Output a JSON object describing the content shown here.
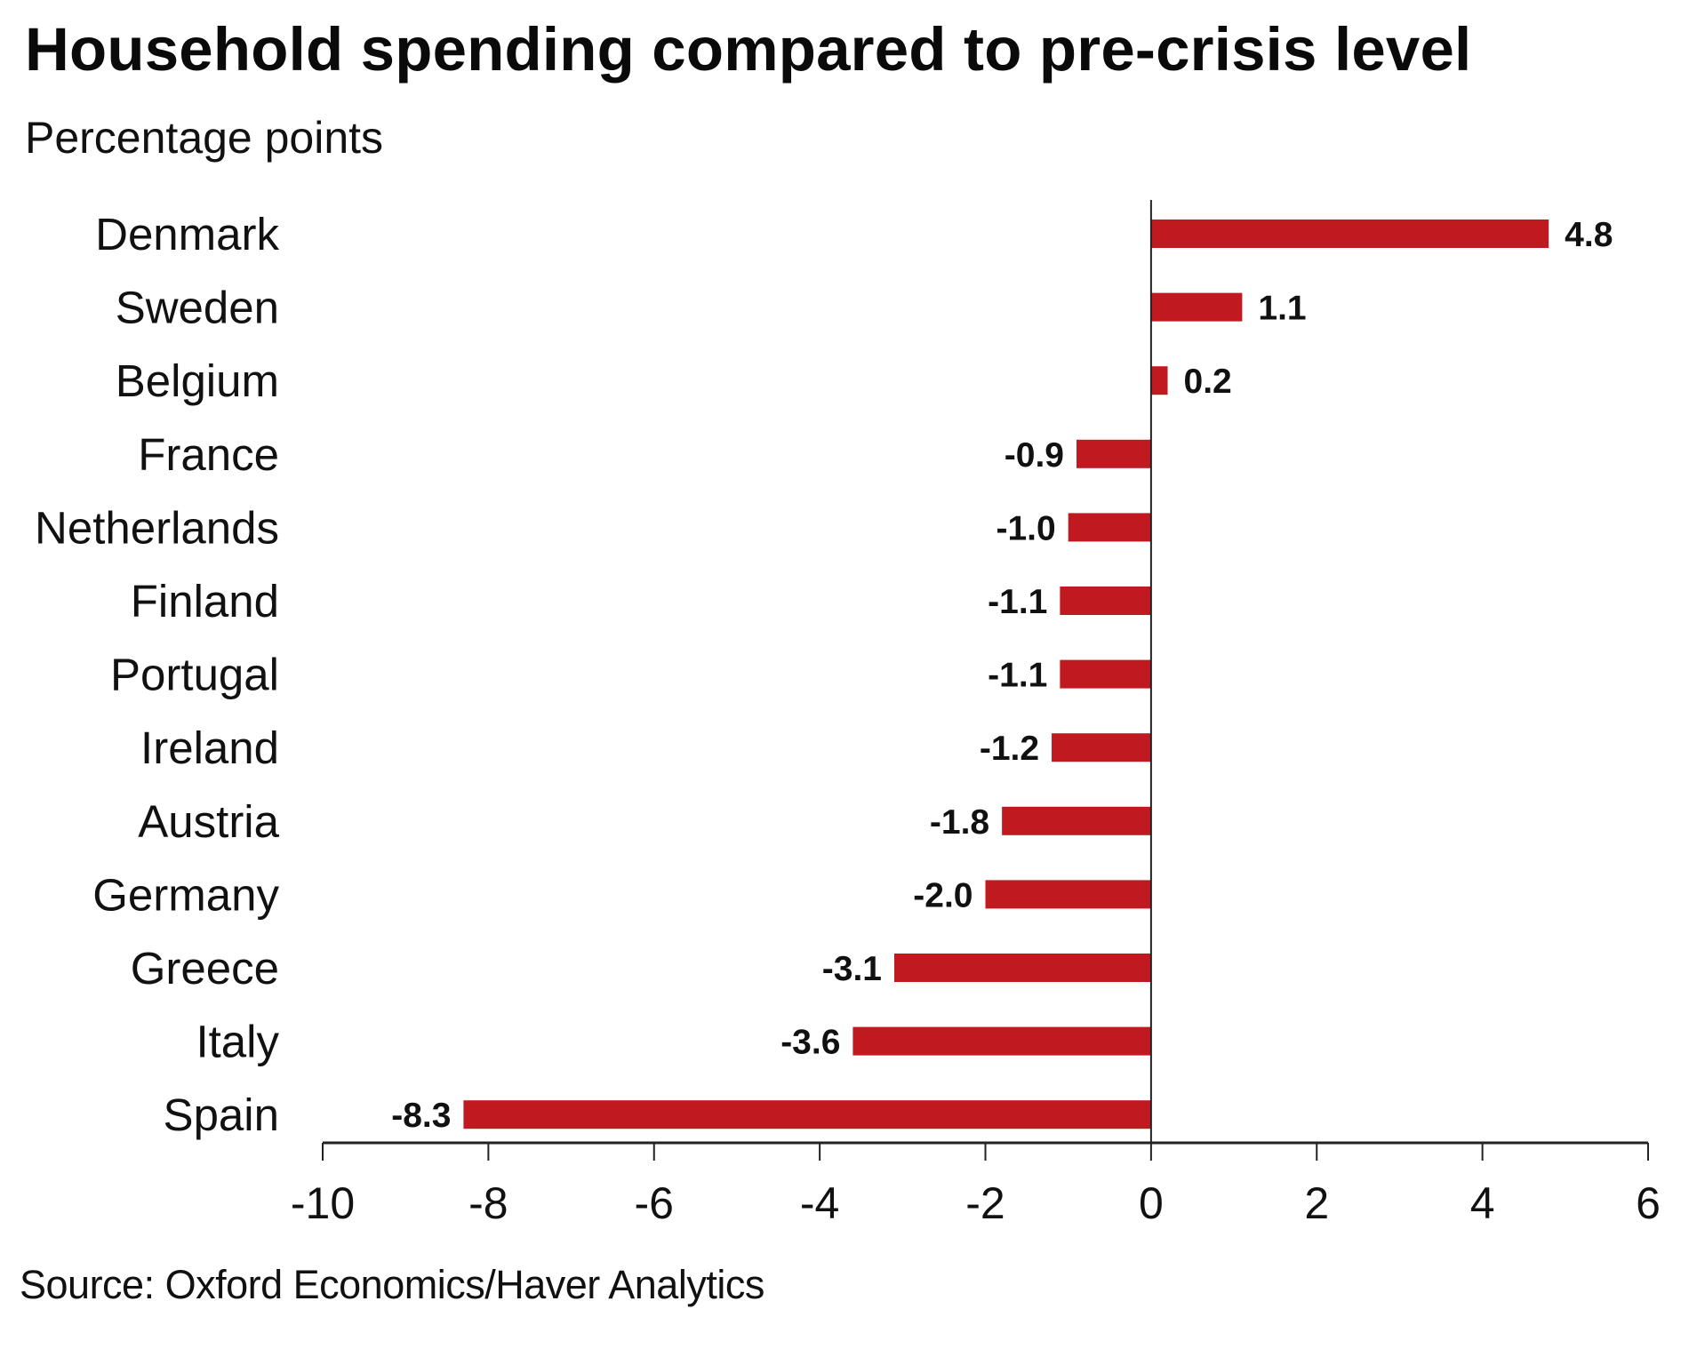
{
  "chart_data": {
    "type": "bar",
    "orientation": "horizontal",
    "title": "Household spending compared to pre-crisis level",
    "subtitle": "Percentage points",
    "source": "Source: Oxford Economics/Haver Analytics",
    "categories": [
      "Denmark",
      "Sweden",
      "Belgium",
      "France",
      "Netherlands",
      "Finland",
      "Portugal",
      "Ireland",
      "Austria",
      "Germany",
      "Greece",
      "Italy",
      "Spain"
    ],
    "values": [
      4.8,
      1.1,
      0.2,
      -0.9,
      -1.0,
      -1.1,
      -1.1,
      -1.2,
      -1.8,
      -2.0,
      -3.1,
      -3.6,
      -8.3
    ],
    "value_labels": [
      "4.8",
      "1.1",
      "0.2",
      "-0.9",
      "-1.0",
      "-1.1",
      "-1.1",
      "-1.2",
      "-1.8",
      "-2.0",
      "-3.1",
      "-3.6",
      "-8.3"
    ],
    "xlabel": "",
    "ylabel": "",
    "xlim": [
      -10,
      6
    ],
    "xticks": [
      -10,
      -8,
      -6,
      -4,
      -2,
      0,
      2,
      4,
      6
    ],
    "xtick_labels": [
      "-10",
      "-8",
      "-6",
      "-4",
      "-2",
      "0",
      "2",
      "4",
      "6"
    ],
    "grid": false,
    "legend": "none",
    "bar_color": "#C0191F"
  }
}
